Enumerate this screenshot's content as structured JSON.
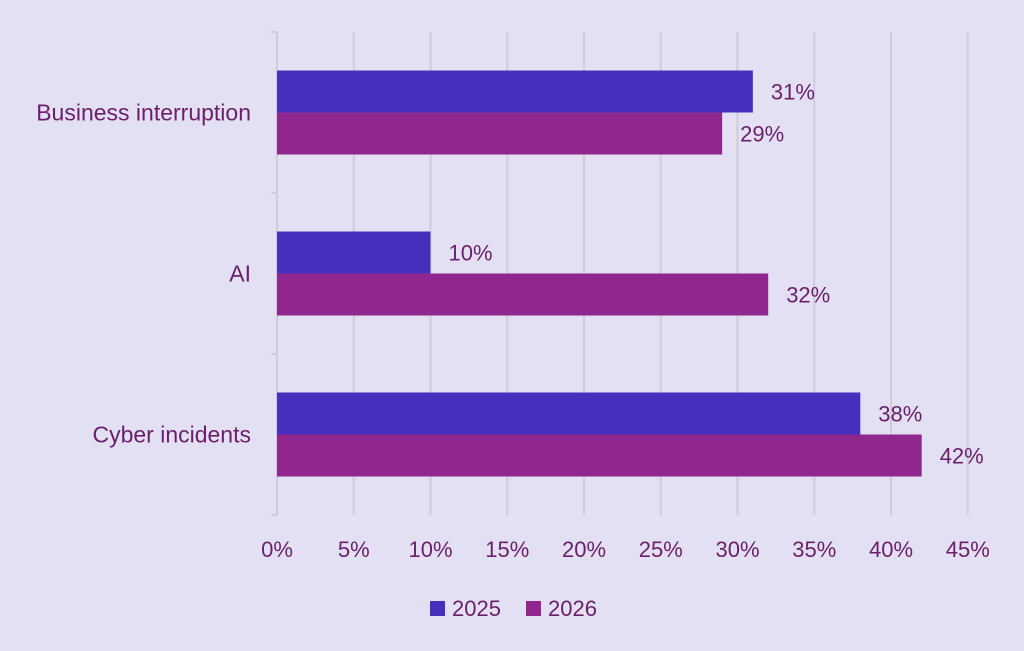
{
  "chart_data": {
    "type": "bar",
    "orientation": "horizontal",
    "categories": [
      "Business interruption",
      "AI",
      "Cyber incidents"
    ],
    "series": [
      {
        "name": "2025",
        "color": "#472ebd",
        "values": [
          31,
          10,
          38
        ],
        "labels": [
          "31%",
          "10%",
          "38%"
        ]
      },
      {
        "name": "2026",
        "color": "#8f278f",
        "values": [
          29,
          32,
          42
        ],
        "labels": [
          "29%",
          "32%",
          "42%"
        ]
      }
    ],
    "xlim": [
      0,
      45
    ],
    "ticks": [
      {
        "value": 0,
        "label": "0%"
      },
      {
        "value": 5,
        "label": "5%"
      },
      {
        "value": 10,
        "label": "10%"
      },
      {
        "value": 15,
        "label": "15%"
      },
      {
        "value": 20,
        "label": "20%"
      },
      {
        "value": 25,
        "label": "25%"
      },
      {
        "value": 30,
        "label": "30%"
      },
      {
        "value": 35,
        "label": "35%"
      },
      {
        "value": 40,
        "label": "40%"
      },
      {
        "value": 45,
        "label": "45%"
      }
    ],
    "grid": true,
    "legend_position": "bottom",
    "text_color": "#6b1f6b",
    "gridline_color": "#cfcdd8",
    "background": "#e2e0f2"
  }
}
